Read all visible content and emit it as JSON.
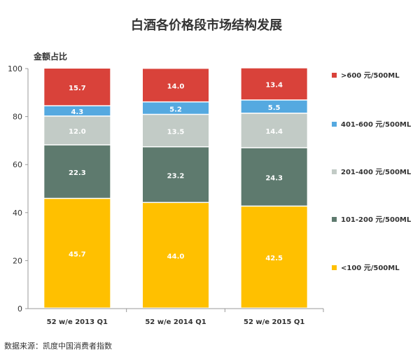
{
  "title": "白酒各价格段市场结构发展",
  "y_unit_label": "金额占比",
  "source": "数据来源：凯度中国消费者指数",
  "chart_data": {
    "type": "bar",
    "stacked": true,
    "title": "白酒各价格段市场结构发展",
    "ylabel": "金额占比",
    "xlabel": "",
    "ylim": [
      0,
      100
    ],
    "yticks": [
      0,
      20,
      40,
      60,
      80,
      100
    ],
    "categories": [
      "52 w/e 2013 Q1",
      "52 w/e 2014 Q1",
      "52 w/e 2015 Q1"
    ],
    "series": [
      {
        "name": "<100 元/500ML",
        "values": [
          45.7,
          44.0,
          42.5
        ],
        "color": "#FFC000",
        "label_color": "#ffffff"
      },
      {
        "name": "101-200 元/500ML",
        "values": [
          22.3,
          23.2,
          24.3
        ],
        "color": "#5E7A6E",
        "label_color": "#ffffff"
      },
      {
        "name": "201-400 元/500ML",
        "values": [
          12.0,
          13.5,
          14.4
        ],
        "color": "#C2CBC6",
        "label_color": "#ffffff"
      },
      {
        "name": "401-600 元/500ML",
        "values": [
          4.3,
          5.2,
          5.5
        ],
        "color": "#55A9E0",
        "label_color": "#ffffff"
      },
      {
        "name": ">600 元/500ML",
        "values": [
          15.7,
          14.0,
          13.4
        ],
        "color": "#D9423A",
        "label_color": "#ffffff"
      }
    ],
    "legend_position": "right",
    "grid": false
  }
}
